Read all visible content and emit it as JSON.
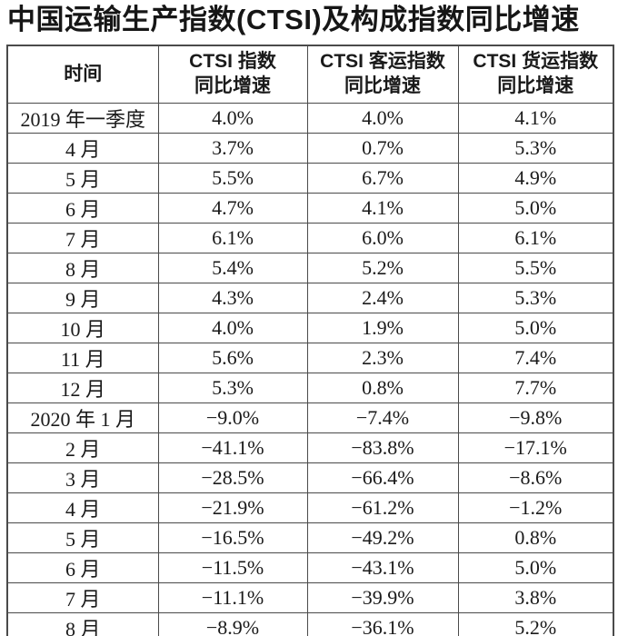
{
  "title": "中国运输生产指数(CTSI)及构成指数同比增速",
  "colors": {
    "text": "#1a1a1a",
    "border": "#4a4a4a",
    "background": "#ffffff"
  },
  "table": {
    "headers": [
      {
        "line1": "时间",
        "line2": ""
      },
      {
        "line1": "CTSI 指数",
        "line2": "同比增速"
      },
      {
        "line1": "CTSI 客运指数",
        "line2": "同比增速"
      },
      {
        "line1": "CTSI 货运指数",
        "line2": "同比增速"
      }
    ],
    "rows": [
      {
        "time": "2019 年一季度",
        "ctsi": "4.0%",
        "passenger": "4.0%",
        "freight": "4.1%"
      },
      {
        "time": "4 月",
        "ctsi": "3.7%",
        "passenger": "0.7%",
        "freight": "5.3%"
      },
      {
        "time": "5 月",
        "ctsi": "5.5%",
        "passenger": "6.7%",
        "freight": "4.9%"
      },
      {
        "time": "6 月",
        "ctsi": "4.7%",
        "passenger": "4.1%",
        "freight": "5.0%"
      },
      {
        "time": "7 月",
        "ctsi": "6.1%",
        "passenger": "6.0%",
        "freight": "6.1%"
      },
      {
        "time": "8 月",
        "ctsi": "5.4%",
        "passenger": "5.2%",
        "freight": "5.5%"
      },
      {
        "time": "9 月",
        "ctsi": "4.3%",
        "passenger": "2.4%",
        "freight": "5.3%"
      },
      {
        "time": "10 月",
        "ctsi": "4.0%",
        "passenger": "1.9%",
        "freight": "5.0%"
      },
      {
        "time": "11 月",
        "ctsi": "5.6%",
        "passenger": "2.3%",
        "freight": "7.4%"
      },
      {
        "time": "12 月",
        "ctsi": "5.3%",
        "passenger": "0.8%",
        "freight": "7.7%"
      },
      {
        "time": "2020 年 1 月",
        "ctsi": "−9.0%",
        "passenger": "−7.4%",
        "freight": "−9.8%"
      },
      {
        "time": "2 月",
        "ctsi": "−41.1%",
        "passenger": "−83.8%",
        "freight": "−17.1%"
      },
      {
        "time": "3 月",
        "ctsi": "−28.5%",
        "passenger": "−66.4%",
        "freight": "−8.6%"
      },
      {
        "time": "4 月",
        "ctsi": "−21.9%",
        "passenger": "−61.2%",
        "freight": "−1.2%"
      },
      {
        "time": "5 月",
        "ctsi": "−16.5%",
        "passenger": "−49.2%",
        "freight": "0.8%"
      },
      {
        "time": "6 月",
        "ctsi": "−11.5%",
        "passenger": "−43.1%",
        "freight": "5.0%"
      },
      {
        "time": "7 月",
        "ctsi": "−11.1%",
        "passenger": "−39.9%",
        "freight": "3.8%"
      },
      {
        "time": "8 月",
        "ctsi": "−8.9%",
        "passenger": "−36.1%",
        "freight": "5.2%"
      }
    ]
  }
}
